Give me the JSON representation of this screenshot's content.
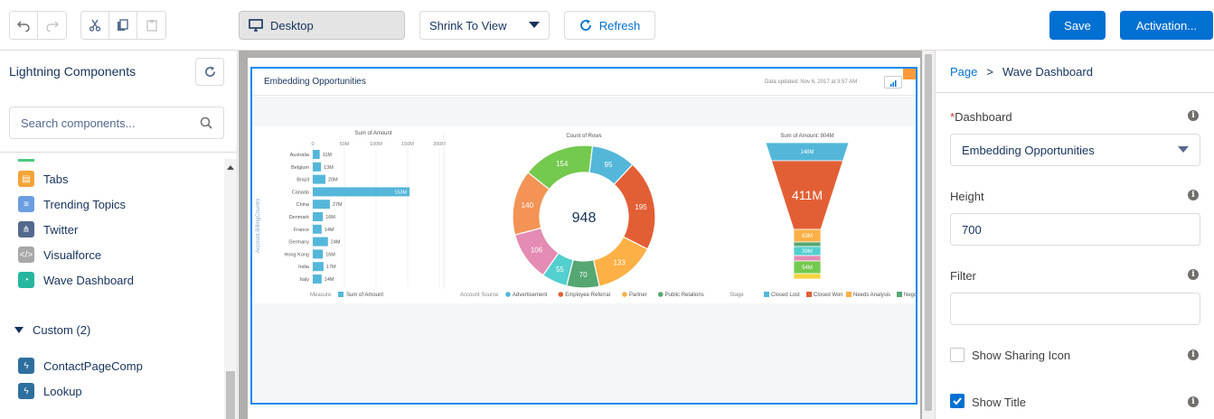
{
  "toolbar": {
    "device": "Desktop",
    "view_mode": "Shrink To View",
    "refresh": "Refresh",
    "save": "Save",
    "activation": "Activation..."
  },
  "left_panel": {
    "title": "Lightning Components",
    "search_placeholder": "Search components...",
    "items": [
      {
        "label": "Tabs",
        "icon": "tabs-icon",
        "color": "#f4a338"
      },
      {
        "label": "Trending Topics",
        "icon": "list-icon",
        "color": "#6c9de0"
      },
      {
        "label": "Twitter",
        "icon": "twitter-icon",
        "color": "#54698d"
      },
      {
        "label": "Visualforce",
        "icon": "code-icon",
        "color": "#a8a8a8"
      },
      {
        "label": "Wave Dashboard",
        "icon": "wave-icon",
        "color": "#26b7a1"
      }
    ],
    "custom_header": "Custom (2)",
    "custom_items": [
      {
        "label": "ContactPageComp",
        "icon": "lightning-icon",
        "color": "#2e6f9e"
      },
      {
        "label": "Lookup",
        "icon": "lightning-icon",
        "color": "#2e6f9e"
      }
    ]
  },
  "dashboard": {
    "title": "Embedding Opportunities",
    "updated": "Data updated: Nov 6, 2017 at 3:57 AM",
    "bar_chart": {
      "title": "Sum of Amount",
      "axis_label": "Account.BillingCountry",
      "ticks": [
        "0",
        "50M",
        "100M",
        "150M",
        "200M"
      ],
      "categories": [
        "Australia",
        "Belgium",
        "Brazil",
        "Canada",
        "China",
        "Denmark",
        "France",
        "Germany",
        "Hong Kong",
        "India",
        "Italy"
      ],
      "values": [
        11,
        13,
        20,
        153,
        27,
        16,
        14,
        24,
        16,
        17,
        14
      ],
      "labels": [
        "11M",
        "13M",
        "20M",
        "153M",
        "27M",
        "16M",
        "14M",
        "24M",
        "16M",
        "17M",
        "14M"
      ],
      "xmax": 200,
      "legend_title": "Measure",
      "legend_item": "Sum of Amount",
      "color": "#54b7d9"
    },
    "donut_chart": {
      "title": "Count of Rows",
      "total": "948",
      "values": [
        95,
        195,
        133,
        70,
        55,
        106,
        140,
        154
      ],
      "colors": [
        "#54b7d9",
        "#e25f35",
        "#fcb045",
        "#56a772",
        "#52cfcf",
        "#e48cb3",
        "#f39456",
        "#74c94f"
      ],
      "legend_title": "Account Source",
      "legend": [
        {
          "name": "Advertisement",
          "color": "#54b7d9"
        },
        {
          "name": "Employee Referral",
          "color": "#e25f35"
        },
        {
          "name": "Partner",
          "color": "#fcb045"
        },
        {
          "name": "Public Relations",
          "color": "#56a772"
        }
      ]
    },
    "funnel_chart": {
      "title": "Sum of Amount: 804M",
      "labels": [
        "148M",
        "411M",
        "63M",
        "",
        "39M",
        "",
        "54M",
        ""
      ],
      "legend_title": "Stage",
      "legend": [
        {
          "name": "Closed Lost",
          "color": "#54b7d9"
        },
        {
          "name": "Closed Won",
          "color": "#e25f35"
        },
        {
          "name": "Needs Analysis",
          "color": "#fcb045"
        },
        {
          "name": "Nego",
          "color": "#56a772"
        }
      ]
    }
  },
  "right_panel": {
    "breadcrumb_root": "Page",
    "breadcrumb_sep": ">",
    "breadcrumb_current": "Wave Dashboard",
    "dashboard_label": "Dashboard",
    "dashboard_value": "Embedding Opportunities",
    "height_label": "Height",
    "height_value": "700",
    "filter_label": "Filter",
    "filter_value": "",
    "sharing_label": "Show Sharing Icon",
    "title_label": "Show Title"
  }
}
